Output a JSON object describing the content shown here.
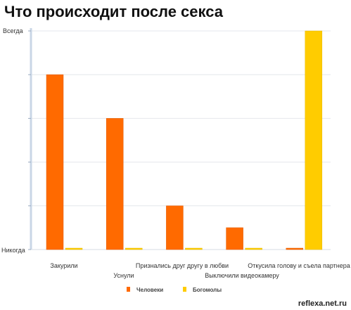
{
  "chart_data": {
    "type": "bar",
    "title": "Что происходит после секса",
    "categories": [
      "Закурили",
      "Уснули",
      "Признались друг другу в любви",
      "Выключили видеокамеру",
      "Откусила голову и съела партнера"
    ],
    "series": [
      {
        "name": "Человеки",
        "color": "#FF6A00",
        "values": [
          80,
          60,
          20,
          10,
          0.5
        ]
      },
      {
        "name": "Богомолы",
        "color": "#FFCC00",
        "values": [
          0.5,
          0.5,
          0.5,
          0.5,
          100
        ]
      }
    ],
    "ylim": [
      0,
      100
    ],
    "y_tick_labels": {
      "top": "Всегда",
      "bottom": "Никогда"
    },
    "grid": true,
    "legend": "bottom"
  },
  "watermark": "reflexa.net.ru"
}
